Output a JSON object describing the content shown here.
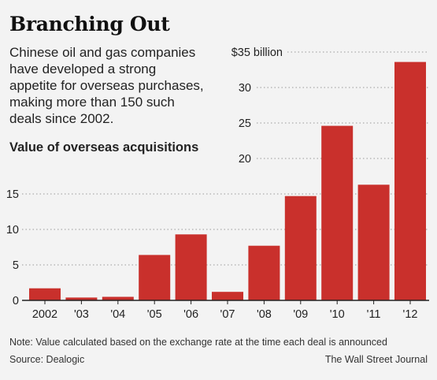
{
  "header": {
    "title": "Branching Out",
    "description": "Chinese oil and gas companies have developed a strong appetite for overseas purchases, making more than 150 such deals since 2002.",
    "subtitle": "Value of overseas acquisitions"
  },
  "footer": {
    "note": "Note: Value calculated based on the exchange rate at the time each deal is announced",
    "source": "Source: Dealogic",
    "publisher": "The Wall Street Journal"
  },
  "colors": {
    "bar": "#c9302c",
    "background": "#f3f3f3",
    "gridline": "#9a9a9a",
    "axis": "#222222"
  },
  "chart_data": {
    "type": "bar",
    "title": "Value of overseas acquisitions",
    "categories": [
      "2002",
      "'03",
      "'04",
      "'05",
      "'06",
      "'07",
      "'08",
      "'09",
      "'10",
      "'11",
      "'12"
    ],
    "values": [
      1.7,
      0.4,
      0.5,
      6.4,
      9.3,
      1.2,
      7.7,
      14.7,
      24.6,
      16.3,
      33.6
    ],
    "ylim": [
      0,
      35
    ],
    "yticks": [
      0,
      5,
      10,
      15,
      20,
      25,
      30,
      35
    ],
    "ytick_labels": [
      "0",
      "5",
      "10",
      "15",
      "20",
      "25",
      "30",
      "$35 billion"
    ],
    "grid": true,
    "legend": "none"
  }
}
